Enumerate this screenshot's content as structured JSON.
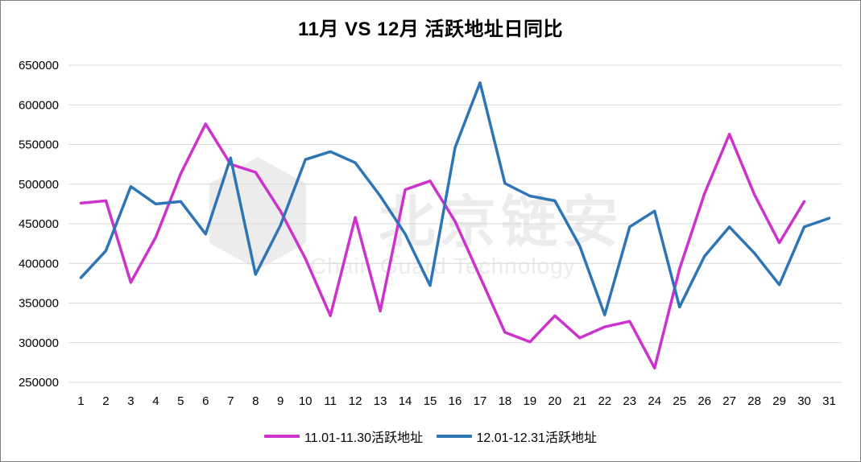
{
  "chart_data": {
    "type": "line",
    "title": "11月 VS 12月 活跃地址日同比",
    "xlabel": "",
    "ylabel": "",
    "ylim": [
      250000,
      650000
    ],
    "yticks": [
      250000,
      300000,
      350000,
      400000,
      450000,
      500000,
      550000,
      600000,
      650000
    ],
    "categories": [
      "1",
      "2",
      "3",
      "4",
      "5",
      "6",
      "7",
      "8",
      "9",
      "10",
      "11",
      "12",
      "13",
      "14",
      "15",
      "16",
      "17",
      "18",
      "19",
      "20",
      "21",
      "22",
      "23",
      "24",
      "25",
      "26",
      "27",
      "28",
      "29",
      "30",
      "31"
    ],
    "grid": true,
    "legend_position": "bottom",
    "series": [
      {
        "name": "11.01-11.30活跃地址",
        "color": "#cc33cc",
        "values": [
          476000,
          479000,
          376000,
          433000,
          513000,
          576000,
          525000,
          515000,
          466000,
          406000,
          334000,
          458000,
          340000,
          493000,
          504000,
          453000,
          383000,
          313000,
          301000,
          334000,
          306000,
          320000,
          327000,
          268000,
          393000,
          488000,
          563000,
          487000,
          426000,
          478000,
          null
        ]
      },
      {
        "name": "12.01-12.31活跃地址",
        "color": "#2e75b6",
        "values": [
          382000,
          416000,
          497000,
          475000,
          478000,
          437000,
          533000,
          386000,
          448000,
          531000,
          541000,
          527000,
          485000,
          437000,
          372000,
          546000,
          628000,
          501000,
          485000,
          479000,
          422000,
          335000,
          446000,
          466000,
          345000,
          409000,
          446000,
          413000,
          373000,
          446000,
          457000
        ]
      }
    ]
  },
  "watermark": {
    "text": "北京链安",
    "subtext": "Chain Guard Technology"
  }
}
